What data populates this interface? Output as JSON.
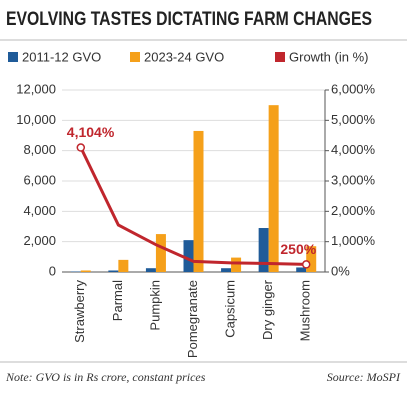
{
  "chart_data": {
    "type": "bar",
    "title": "EVOLVING TASTES DICTATING FARM CHANGES",
    "categories": [
      "Strawberry",
      "Parmal",
      "Pumpkin",
      "Pomegranate",
      "Capsicum",
      "Dry ginger",
      "Mushroom"
    ],
    "series": [
      {
        "name": "2011-12 GVO",
        "color": "#1f5b99",
        "type": "bar",
        "values": [
          30,
          100,
          250,
          2100,
          250,
          2900,
          300
        ]
      },
      {
        "name": "2023-24 GVO",
        "color": "#f5a01a",
        "type": "bar",
        "values": [
          100,
          800,
          2500,
          9300,
          950,
          11000,
          1700
        ]
      },
      {
        "name": "Growth (in %)",
        "color": "#c0262d",
        "type": "line",
        "axis": "y2",
        "values": [
          4104,
          1550,
          900,
          350,
          300,
          280,
          250
        ],
        "value_labels": [
          "4,104%",
          null,
          null,
          null,
          null,
          null,
          "250%"
        ]
      }
    ],
    "ylim": [
      0,
      12000
    ],
    "yticks": [
      0,
      {
        "value": 2000,
        "label": "2,000"
      },
      {
        "value": 4000,
        "label": "4,000"
      },
      {
        "value": 6000,
        "label": "6,000"
      },
      {
        "value": 8000,
        "label": "8,000"
      },
      {
        "value": 10000,
        "label": "10,000"
      },
      {
        "value": 12000,
        "label": "12,000"
      }
    ],
    "y2lim": [
      0,
      6000
    ],
    "y2ticks": [
      {
        "value": 0,
        "label": "0%"
      },
      {
        "value": 1000,
        "label": "1,000%"
      },
      {
        "value": 2000,
        "label": "2,000%"
      },
      {
        "value": 3000,
        "label": "3,000%"
      },
      {
        "value": 4000,
        "label": "4,000%"
      },
      {
        "value": 5000,
        "label": "5,000%"
      },
      {
        "value": 6000,
        "label": "6,000%"
      }
    ],
    "grid": true,
    "note": "Note: GVO is in Rs crore, constant prices",
    "source": "Source: MoSPI"
  }
}
